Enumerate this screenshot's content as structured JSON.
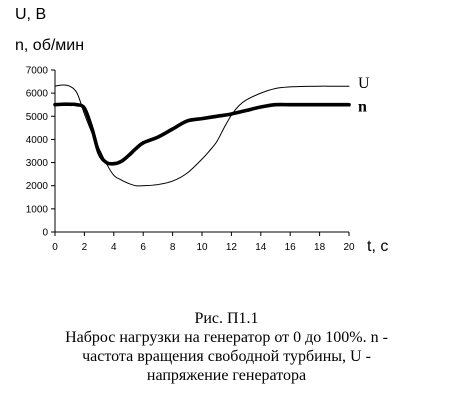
{
  "chart_data": {
    "type": "line",
    "ylabel_top": "U, B",
    "ylabel_bottom": "n, об/мин",
    "xlabel": "t, c",
    "xlim": [
      0,
      20
    ],
    "ylim": [
      0,
      7000
    ],
    "x_ticks": [
      "0",
      "2",
      "4",
      "6",
      "8",
      "10",
      "12",
      "14",
      "16",
      "18",
      "20"
    ],
    "y_ticks": [
      "0",
      "1000",
      "2000",
      "3000",
      "4000",
      "5000",
      "6000",
      "7000"
    ],
    "grid": false,
    "series": [
      {
        "name": "U",
        "style": "thin",
        "x": [
          0,
          0.5,
          1,
          1.5,
          2,
          2.5,
          3,
          3.5,
          4,
          4.5,
          5,
          5.5,
          6,
          7,
          8,
          9,
          10,
          10.5,
          11,
          11.5,
          12,
          12.5,
          13,
          14,
          15,
          16,
          17,
          18,
          19,
          20
        ],
        "y": [
          6300,
          6350,
          6300,
          6000,
          5100,
          4300,
          3600,
          2950,
          2450,
          2250,
          2100,
          2000,
          2000,
          2050,
          2200,
          2550,
          3150,
          3500,
          3900,
          4500,
          5050,
          5450,
          5700,
          6000,
          6200,
          6270,
          6290,
          6300,
          6300,
          6300
        ]
      },
      {
        "name": "n",
        "style": "thick",
        "x": [
          0,
          0.5,
          1,
          1.5,
          2,
          2.5,
          3,
          3.5,
          4,
          4.5,
          5,
          5.5,
          6,
          7,
          8,
          9,
          10,
          11,
          12,
          13,
          14,
          15,
          16,
          17,
          18,
          19,
          20
        ],
        "y": [
          5500,
          5520,
          5520,
          5500,
          5350,
          4500,
          3400,
          3000,
          2950,
          3050,
          3300,
          3600,
          3850,
          4100,
          4450,
          4800,
          4900,
          5000,
          5100,
          5250,
          5400,
          5500,
          5500,
          5500,
          5500,
          5500,
          5500
        ]
      }
    ]
  },
  "caption": {
    "line1": "Рис. П1.1",
    "line2": "Наброс нагрузки на генератор от 0 до 100%. n -",
    "line3": "частота вращения свободной турбины, U -",
    "line4": "напряжение генератора"
  }
}
